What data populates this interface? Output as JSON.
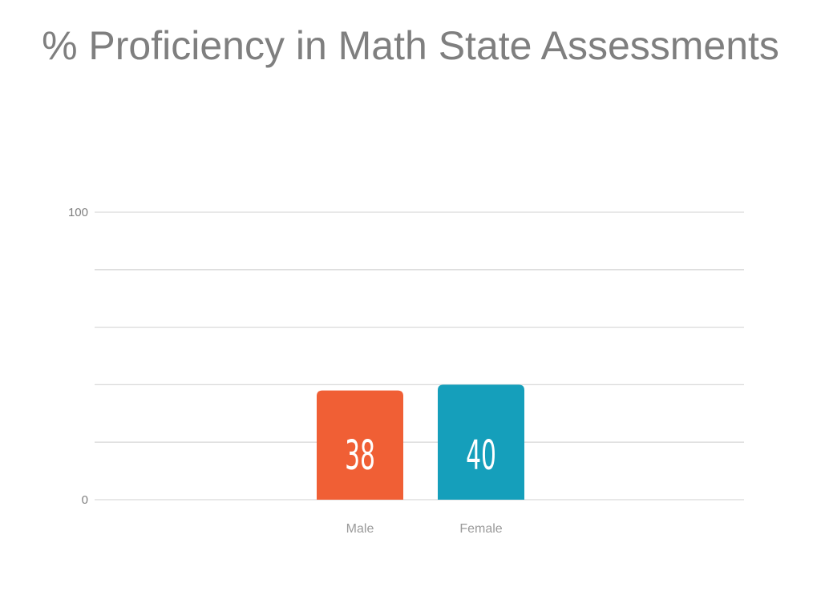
{
  "title": "% Proficiency in Math State Assessments",
  "chart_data": {
    "type": "bar",
    "title": "% Proficiency in Math State Assessments",
    "categories": [
      "Male",
      "Female"
    ],
    "values": [
      38,
      40
    ],
    "data_labels": [
      "38",
      "40"
    ],
    "colors": [
      "#f05f35",
      "#159fbb"
    ],
    "ylim": [
      0,
      100
    ],
    "gridlines": [
      0,
      20,
      40,
      60,
      80,
      100
    ],
    "y_tick_labels": [
      {
        "value": 100,
        "label": "100"
      },
      {
        "value": 0,
        "label": "0"
      }
    ],
    "grid": true,
    "xlabel": "",
    "ylabel": ""
  }
}
